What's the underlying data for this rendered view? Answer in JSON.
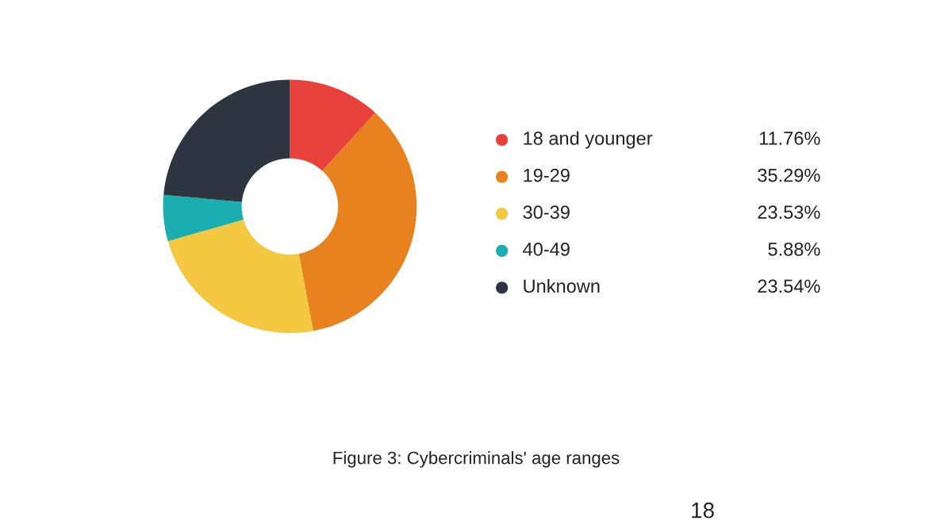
{
  "chart_data": {
    "type": "donut",
    "categories": [
      "18 and younger",
      "19-29",
      "30-39",
      "40-49",
      "Unknown"
    ],
    "values": [
      11.76,
      35.29,
      23.53,
      5.88,
      23.54
    ],
    "value_labels": [
      "11.76%",
      "35.29%",
      "23.53%",
      "5.88%",
      "23.54%"
    ],
    "colors": [
      "#e8403a",
      "#e8821e",
      "#f5c842",
      "#1aaeb0",
      "#2d3640"
    ],
    "legend": "right",
    "annotations": [
      "Figure 3: Cybercriminals' age ranges",
      "18"
    ]
  }
}
